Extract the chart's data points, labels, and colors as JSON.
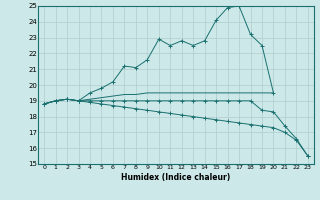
{
  "xlabel": "Humidex (Indice chaleur)",
  "ylabel": "",
  "bg_color": "#cce8e8",
  "line_color": "#1a7070",
  "grid_color": "#b0cccc",
  "ylim": [
    15,
    25
  ],
  "xlim": [
    -0.5,
    23.5
  ],
  "yticks": [
    15,
    16,
    17,
    18,
    19,
    20,
    21,
    22,
    23,
    24,
    25
  ],
  "xticks": [
    0,
    1,
    2,
    3,
    4,
    5,
    6,
    7,
    8,
    9,
    10,
    11,
    12,
    13,
    14,
    15,
    16,
    17,
    18,
    19,
    20,
    21,
    22,
    23
  ],
  "lines": [
    {
      "x": [
        0,
        1,
        2,
        3,
        4,
        5,
        6,
        7,
        8,
        9,
        10,
        11,
        12,
        13,
        14,
        15,
        16,
        17,
        18,
        19,
        20
      ],
      "y": [
        18.8,
        19.0,
        19.1,
        19.0,
        19.5,
        19.8,
        20.2,
        21.2,
        21.1,
        21.6,
        22.9,
        22.5,
        22.8,
        22.5,
        22.8,
        24.1,
        24.9,
        25.0,
        23.2,
        22.5,
        19.5
      ],
      "marker": "+"
    },
    {
      "x": [
        0,
        1,
        2,
        3,
        4,
        5,
        6,
        7,
        8,
        9,
        10,
        11,
        12,
        13,
        14,
        15,
        16,
        17,
        18,
        19,
        20
      ],
      "y": [
        18.8,
        19.0,
        19.1,
        19.0,
        19.1,
        19.2,
        19.3,
        19.4,
        19.4,
        19.5,
        19.5,
        19.5,
        19.5,
        19.5,
        19.5,
        19.5,
        19.5,
        19.5,
        19.5,
        19.5,
        19.5
      ],
      "marker": null
    },
    {
      "x": [
        0,
        1,
        2,
        3,
        4,
        5,
        6,
        7,
        8,
        9,
        10,
        11,
        12,
        13,
        14,
        15,
        16,
        17,
        18,
        19,
        20,
        21,
        22,
        23
      ],
      "y": [
        18.8,
        19.0,
        19.1,
        19.0,
        19.0,
        19.0,
        19.0,
        19.0,
        19.0,
        19.0,
        19.0,
        19.0,
        19.0,
        19.0,
        19.0,
        19.0,
        19.0,
        19.0,
        19.0,
        18.4,
        18.3,
        17.4,
        16.6,
        15.5
      ],
      "marker": "+"
    },
    {
      "x": [
        0,
        1,
        2,
        3,
        4,
        5,
        6,
        7,
        8,
        9,
        10,
        11,
        12,
        13,
        14,
        15,
        16,
        17,
        18,
        19,
        20,
        21,
        22,
        23
      ],
      "y": [
        18.8,
        19.0,
        19.1,
        19.0,
        18.9,
        18.8,
        18.7,
        18.6,
        18.5,
        18.4,
        18.3,
        18.2,
        18.1,
        18.0,
        17.9,
        17.8,
        17.7,
        17.6,
        17.5,
        17.4,
        17.3,
        17.0,
        16.5,
        15.5
      ],
      "marker": "+"
    }
  ]
}
